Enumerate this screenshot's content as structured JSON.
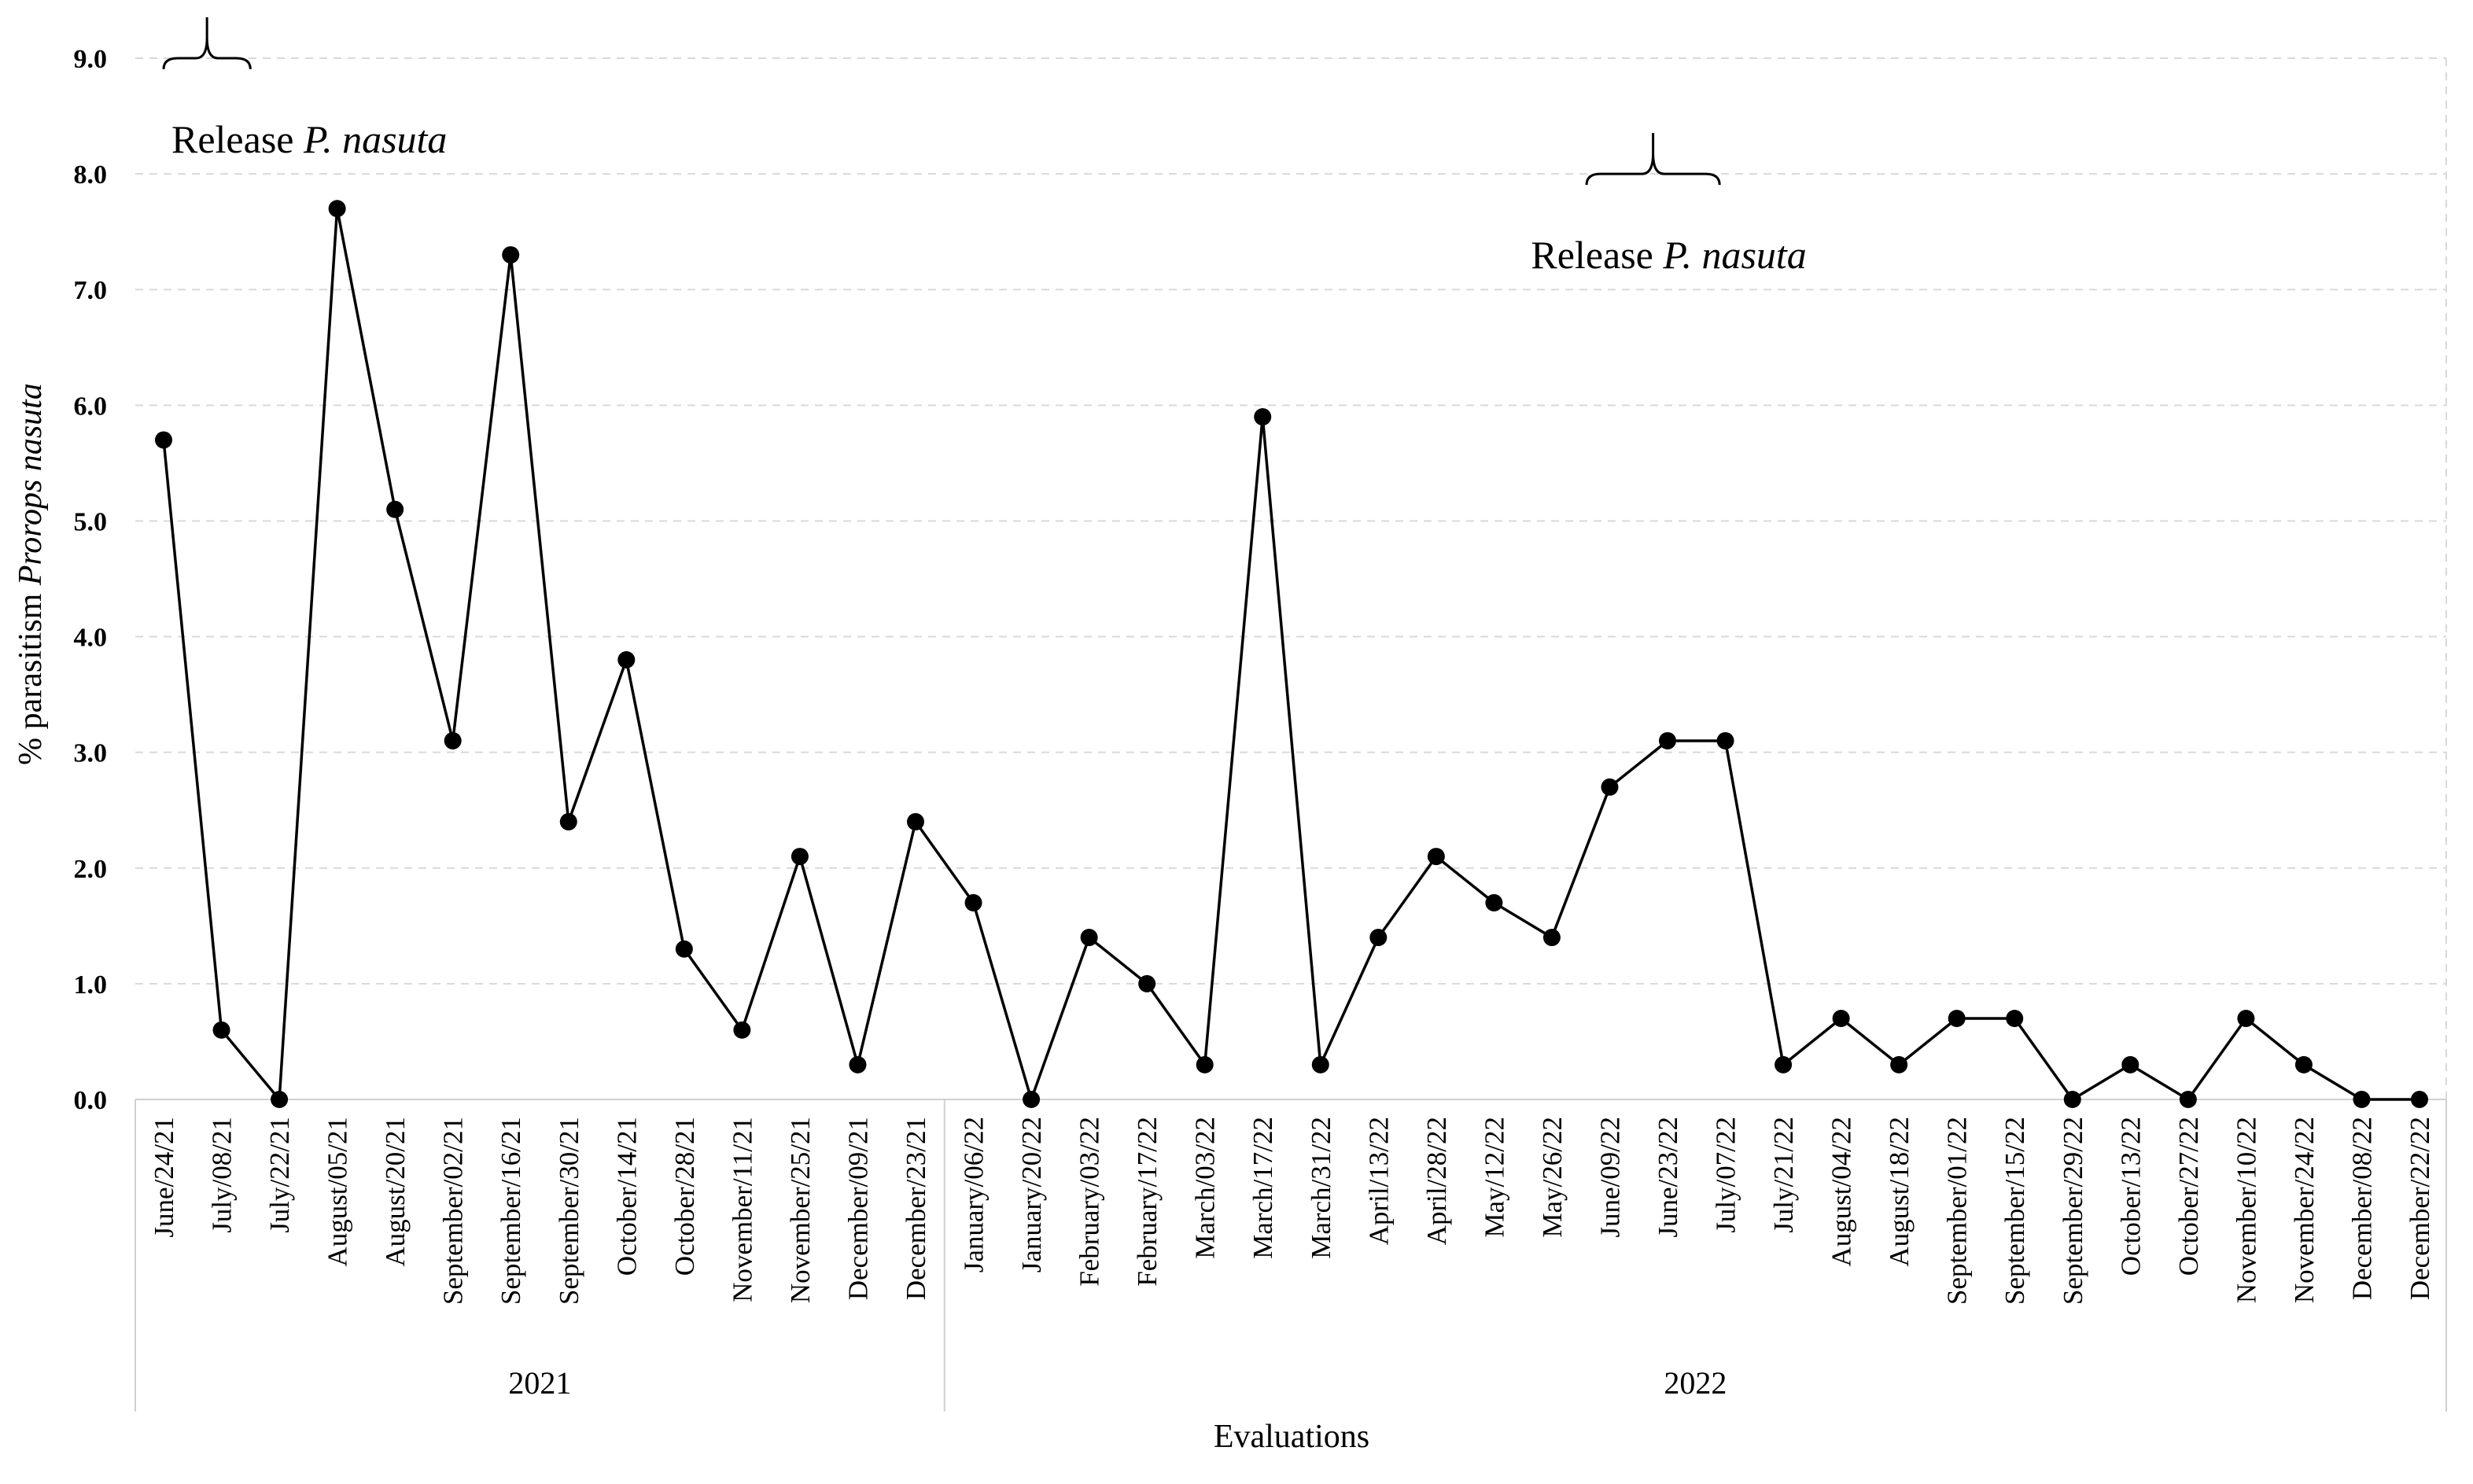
{
  "chart_data": {
    "type": "line",
    "xlabel": "Evaluations",
    "ylabel_prefix": "% parasitism ",
    "ylabel_species": "Prorops  nasuta",
    "ylim": [
      0,
      9
    ],
    "yticks": [
      "0.0",
      "1.0",
      "2.0",
      "3.0",
      "4.0",
      "5.0",
      "6.0",
      "7.0",
      "8.0",
      "9.0"
    ],
    "grid": true,
    "categories": [
      "June/24/21",
      "July/08/21",
      "July/22/21",
      "August/05/21",
      "August/20/21",
      "September/02/21",
      "September/16/21",
      "September/30/21",
      "October/14/21",
      "October/28/21",
      "November/11/21",
      "November/25/21",
      "December/09/21",
      "December/23/21",
      "January/06/22",
      "January/20/22",
      "February/03/22",
      "February/17/22",
      "March/03/22",
      "March/17/22",
      "March/31/22",
      "April/13/22",
      "April/28/22",
      "May/12/22",
      "May/26/22",
      "June/09/22",
      "June/23/22",
      "July/07/22",
      "July/21/22",
      "August/04/22",
      "August/18/22",
      "September/01/22",
      "September/15/22",
      "September/29/22",
      "October/13/22",
      "October/27/22",
      "November/10/22",
      "November/24/22",
      "December/08/22",
      "December/22/22"
    ],
    "values": [
      5.7,
      0.6,
      0.0,
      7.7,
      5.1,
      3.1,
      7.3,
      2.4,
      3.8,
      1.3,
      0.6,
      2.1,
      0.3,
      2.4,
      1.7,
      0.0,
      1.4,
      1.0,
      0.3,
      5.9,
      0.3,
      1.4,
      2.1,
      1.7,
      1.4,
      2.7,
      3.1,
      3.1,
      0.3,
      0.7,
      0.3,
      0.7,
      0.7,
      0.0,
      0.3,
      0.0,
      0.7,
      0.3,
      0.0,
      0.0
    ],
    "year_groups": [
      {
        "label": "2021",
        "start": 0,
        "end": 13
      },
      {
        "label": "2022",
        "start": 14,
        "end": 39
      }
    ],
    "annotations": [
      {
        "prefix": "Release ",
        "species": "P. nasuta",
        "from": 0,
        "to": 1.5,
        "y": 9.0
      },
      {
        "prefix": "Release ",
        "species": "P. nasuta",
        "from": 24.6,
        "to": 26.9,
        "y": 8.0
      }
    ]
  }
}
